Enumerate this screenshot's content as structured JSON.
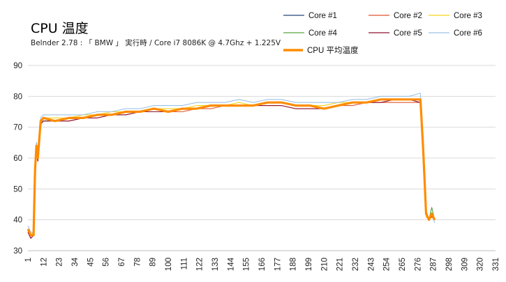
{
  "chart_data": {
    "type": "line",
    "title": "CPU 温度",
    "subtitle": "Belnder 2.78 : 「 BMW 」 実行時 / Core i7 8086K @ 4.7Ghz + 1.225V",
    "xlabel": "",
    "ylabel": "",
    "xlim": [
      1,
      331
    ],
    "ylim": [
      30,
      90
    ],
    "y_ticks": [
      30,
      40,
      50,
      60,
      70,
      80,
      90
    ],
    "x_ticks": [
      "1",
      "12",
      "23",
      "34",
      "45",
      "56",
      "67",
      "78",
      "89",
      "100",
      "111",
      "122",
      "133",
      "144",
      "155",
      "166",
      "177",
      "188",
      "199",
      "210",
      "221",
      "232",
      "243",
      "254",
      "265",
      "276",
      "287",
      "298",
      "309",
      "320",
      "331"
    ],
    "grid": true,
    "legend_position": "top-right",
    "x": [
      1,
      3,
      5,
      6,
      7,
      8,
      10,
      12,
      20,
      30,
      40,
      50,
      60,
      70,
      80,
      90,
      100,
      110,
      120,
      130,
      140,
      150,
      160,
      170,
      180,
      190,
      200,
      210,
      220,
      230,
      240,
      250,
      260,
      270,
      278,
      280,
      282,
      284,
      286,
      288
    ],
    "series": [
      {
        "name": "Core #1",
        "color": "#264478",
        "values": [
          37,
          35,
          36,
          55,
          64,
          60,
          72,
          73,
          72,
          73,
          73,
          74,
          74,
          75,
          75,
          76,
          75,
          76,
          76,
          77,
          77,
          77,
          77,
          78,
          78,
          77,
          77,
          76,
          77,
          78,
          78,
          79,
          79,
          79,
          79,
          60,
          42,
          40,
          41,
          40
        ]
      },
      {
        "name": "Core #2",
        "color": "#e0552e",
        "values": [
          36,
          34,
          35,
          56,
          63,
          59,
          71,
          72,
          72,
          72,
          73,
          73,
          74,
          74,
          75,
          75,
          75,
          75,
          76,
          76,
          77,
          77,
          77,
          77,
          77,
          76,
          76,
          76,
          77,
          77,
          78,
          78,
          78,
          78,
          78,
          66,
          43,
          40,
          42,
          40
        ]
      },
      {
        "name": "Core #3",
        "color": "#f5d316",
        "values": [
          37,
          35,
          36,
          57,
          64,
          60,
          72,
          73,
          73,
          73,
          74,
          74,
          75,
          75,
          75,
          76,
          76,
          76,
          77,
          77,
          77,
          78,
          77,
          78,
          78,
          77,
          77,
          77,
          78,
          78,
          78,
          79,
          79,
          79,
          79,
          58,
          41,
          40,
          41,
          40
        ]
      },
      {
        "name": "Core #4",
        "color": "#55a53b",
        "values": [
          37,
          35,
          35,
          58,
          65,
          61,
          72,
          72,
          72,
          73,
          73,
          74,
          74,
          75,
          75,
          76,
          75,
          76,
          76,
          77,
          77,
          77,
          77,
          78,
          78,
          77,
          77,
          76,
          77,
          78,
          78,
          79,
          79,
          79,
          79,
          60,
          43,
          40,
          44,
          40
        ]
      },
      {
        "name": "Core #5",
        "color": "#8e1230",
        "values": [
          36,
          34,
          35,
          55,
          62,
          59,
          71,
          72,
          72,
          72,
          73,
          73,
          74,
          74,
          75,
          75,
          75,
          76,
          76,
          77,
          77,
          77,
          77,
          77,
          77,
          76,
          76,
          76,
          77,
          78,
          78,
          78,
          79,
          79,
          78,
          64,
          42,
          40,
          41,
          40
        ]
      },
      {
        "name": "Core #6",
        "color": "#9dc3e6",
        "values": [
          38,
          36,
          36,
          58,
          65,
          62,
          73,
          74,
          74,
          74,
          74,
          75,
          75,
          76,
          76,
          77,
          77,
          77,
          78,
          78,
          78,
          79,
          78,
          79,
          79,
          78,
          78,
          78,
          78,
          79,
          79,
          80,
          80,
          80,
          81,
          61,
          43,
          40,
          42,
          39
        ]
      },
      {
        "name": "CPU 平均温度",
        "color": "#ff8c00",
        "values": [
          37,
          35,
          35,
          56,
          64,
          60,
          72,
          73,
          72,
          73,
          73,
          74,
          74,
          75,
          75,
          76,
          75,
          76,
          76,
          77,
          77,
          77,
          77,
          78,
          78,
          77,
          77,
          76,
          77,
          78,
          78,
          79,
          79,
          79,
          79,
          62,
          42,
          40,
          42,
          40
        ]
      }
    ]
  }
}
